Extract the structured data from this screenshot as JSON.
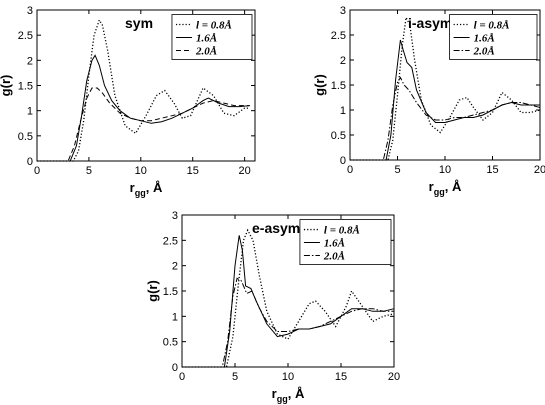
{
  "chart_data": [
    {
      "type": "line",
      "title": "sym",
      "ylabel": "g(r)",
      "xlabel": "r",
      "xlabel_sub": "gg",
      "xlabel_unit": ", Å",
      "xlim": [
        0,
        21
      ],
      "ylim": [
        0,
        3
      ],
      "xticks": [
        "0",
        "5",
        "10",
        "15",
        "20"
      ],
      "yticks": [
        "0",
        "0.5",
        "1",
        "1.5",
        "2",
        "2.5",
        "3"
      ],
      "legend_position": "top-right",
      "series": [
        {
          "name": "l = 0.8Å",
          "dash": "dotted",
          "x": [
            0,
            3.5,
            4.0,
            4.5,
            5.0,
            5.5,
            6.0,
            6.3,
            6.8,
            7.5,
            8.5,
            9.5,
            10.5,
            11.5,
            12.3,
            13.2,
            14.0,
            14.8,
            16.0,
            17.0,
            18.0,
            19.0,
            20.0,
            20.5
          ],
          "y": [
            0,
            0.0,
            0.2,
            0.8,
            1.7,
            2.5,
            2.8,
            2.7,
            2.2,
            1.3,
            0.7,
            0.55,
            0.9,
            1.3,
            1.4,
            1.15,
            0.85,
            0.9,
            1.45,
            1.3,
            0.95,
            0.9,
            1.05,
            1.05
          ]
        },
        {
          "name": "1.6Å",
          "dash": "solid",
          "x": [
            0,
            3.2,
            3.8,
            4.3,
            4.8,
            5.3,
            5.6,
            6.0,
            6.5,
            7.2,
            8.0,
            9.0,
            10.0,
            11.0,
            12.0,
            13.0,
            14.0,
            15.0,
            16.0,
            16.5,
            17.5,
            18.5,
            19.5,
            20.5
          ],
          "y": [
            0,
            0.0,
            0.3,
            0.9,
            1.6,
            2.0,
            2.1,
            1.9,
            1.5,
            1.2,
            1.0,
            0.85,
            0.8,
            0.75,
            0.78,
            0.85,
            0.95,
            1.05,
            1.2,
            1.25,
            1.15,
            1.08,
            1.08,
            1.1
          ]
        },
        {
          "name": "2.0Å",
          "dash": "dashed",
          "x": [
            0,
            3.0,
            3.6,
            4.2,
            4.8,
            5.3,
            5.8,
            6.3,
            7.0,
            8.0,
            9.0,
            10.0,
            11.0,
            12.0,
            13.0,
            14.0,
            15.0,
            16.0,
            17.0,
            18.0,
            19.0,
            20.5
          ],
          "y": [
            0,
            0.0,
            0.3,
            0.8,
            1.25,
            1.45,
            1.45,
            1.35,
            1.15,
            0.95,
            0.85,
            0.8,
            0.8,
            0.85,
            0.9,
            0.95,
            1.05,
            1.15,
            1.2,
            1.15,
            1.1,
            1.1
          ]
        }
      ]
    },
    {
      "type": "line",
      "title": "i-asym",
      "ylabel": "g(r)",
      "xlabel": "r",
      "xlabel_sub": "gg",
      "xlabel_unit": ", Å",
      "xlim": [
        0,
        20
      ],
      "ylim": [
        0,
        3
      ],
      "xticks": [
        "0",
        "5",
        "10",
        "15",
        "20"
      ],
      "yticks": [
        "0",
        "0.5",
        "1",
        "1.5",
        "2",
        "2.5",
        "3"
      ],
      "legend_position": "top-right",
      "series": [
        {
          "name": "l = 0.8Å",
          "dash": "dotted",
          "x": [
            0,
            4.0,
            4.5,
            5.0,
            5.5,
            5.9,
            6.3,
            6.8,
            7.5,
            8.5,
            9.5,
            10.5,
            11.5,
            12.3,
            13.0,
            14.0,
            15.0,
            16.0,
            17.0,
            18.0,
            19.0,
            20.0
          ],
          "y": [
            0,
            0.0,
            0.4,
            1.3,
            2.3,
            2.85,
            2.7,
            2.0,
            1.2,
            0.7,
            0.55,
            0.85,
            1.2,
            1.25,
            1.05,
            0.8,
            0.95,
            1.35,
            1.2,
            0.95,
            0.95,
            1.0
          ]
        },
        {
          "name": "1.6Å",
          "dash": "solid",
          "x": [
            0,
            3.8,
            4.3,
            4.8,
            5.3,
            5.6,
            6.0,
            6.5,
            7.0,
            8.0,
            9.0,
            10.0,
            11.0,
            12.0,
            13.0,
            14.0,
            15.0,
            16.0,
            17.0,
            18.0,
            19.0,
            20.0
          ],
          "y": [
            0,
            0.0,
            0.5,
            1.6,
            2.4,
            2.2,
            1.95,
            1.85,
            1.4,
            0.95,
            0.75,
            0.75,
            0.8,
            0.85,
            0.85,
            0.9,
            1.0,
            1.1,
            1.15,
            1.1,
            1.1,
            1.1
          ]
        },
        {
          "name": "2.0Å",
          "dash": "dashdot",
          "x": [
            0,
            3.5,
            4.0,
            4.5,
            5.0,
            5.3,
            5.7,
            6.2,
            7.0,
            8.0,
            9.0,
            10.0,
            11.0,
            12.0,
            13.0,
            14.0,
            15.0,
            16.0,
            17.0,
            18.0,
            19.0,
            20.0
          ],
          "y": [
            0,
            0.0,
            0.4,
            1.1,
            1.55,
            1.65,
            1.5,
            1.4,
            1.15,
            0.9,
            0.8,
            0.8,
            0.85,
            0.85,
            0.9,
            0.95,
            1.0,
            1.1,
            1.15,
            1.15,
            1.1,
            1.05
          ]
        }
      ]
    },
    {
      "type": "line",
      "title": "e-asym",
      "ylabel": "g(r)",
      "xlabel": "r",
      "xlabel_sub": "gg",
      "xlabel_unit": ", Å",
      "xlim": [
        0,
        20
      ],
      "ylim": [
        0,
        3
      ],
      "xticks": [
        "0",
        "5",
        "10",
        "15",
        "20"
      ],
      "yticks": [
        "0",
        "0.5",
        "1",
        "1.5",
        "2",
        "2.5",
        "3"
      ],
      "legend_position": "top-right",
      "series": [
        {
          "name": "l = 0.8Å",
          "dash": "dotted",
          "x": [
            0,
            4.2,
            4.8,
            5.3,
            5.8,
            6.2,
            6.7,
            7.3,
            8.0,
            9.0,
            10.0,
            11.0,
            12.0,
            12.6,
            13.5,
            14.5,
            15.5,
            16.0,
            17.0,
            18.0,
            19.0,
            20.0
          ],
          "y": [
            0,
            0.0,
            0.6,
            1.6,
            2.5,
            2.7,
            2.5,
            1.8,
            1.1,
            0.65,
            0.55,
            0.9,
            1.25,
            1.3,
            1.1,
            0.8,
            1.2,
            1.5,
            1.2,
            0.9,
            1.0,
            1.05
          ]
        },
        {
          "name": "1.6Å",
          "dash": "solid",
          "x": [
            0,
            4.0,
            4.5,
            5.0,
            5.4,
            5.7,
            6.0,
            6.5,
            7.0,
            8.0,
            9.0,
            10.0,
            11.0,
            12.0,
            13.0,
            14.0,
            15.0,
            16.0,
            17.0,
            18.0,
            19.0,
            20.0
          ],
          "y": [
            0,
            0.0,
            0.7,
            2.0,
            2.6,
            2.3,
            1.6,
            1.55,
            1.3,
            0.85,
            0.6,
            0.65,
            0.75,
            0.75,
            0.8,
            0.85,
            1.0,
            1.15,
            1.15,
            1.1,
            1.1,
            1.15
          ]
        },
        {
          "name": "2.0Å",
          "dash": "dashdot",
          "x": [
            0,
            3.8,
            4.3,
            4.8,
            5.2,
            5.6,
            6.1,
            6.6,
            7.2,
            8.0,
            9.0,
            10.0,
            11.0,
            12.0,
            13.0,
            14.0,
            15.0,
            16.0,
            17.0,
            18.0,
            19.0,
            20.0
          ],
          "y": [
            0,
            0.0,
            0.5,
            1.4,
            1.75,
            1.7,
            1.45,
            1.5,
            1.2,
            0.9,
            0.7,
            0.7,
            0.75,
            0.75,
            0.8,
            0.9,
            1.0,
            1.1,
            1.15,
            1.15,
            1.1,
            1.1
          ]
        }
      ]
    }
  ]
}
